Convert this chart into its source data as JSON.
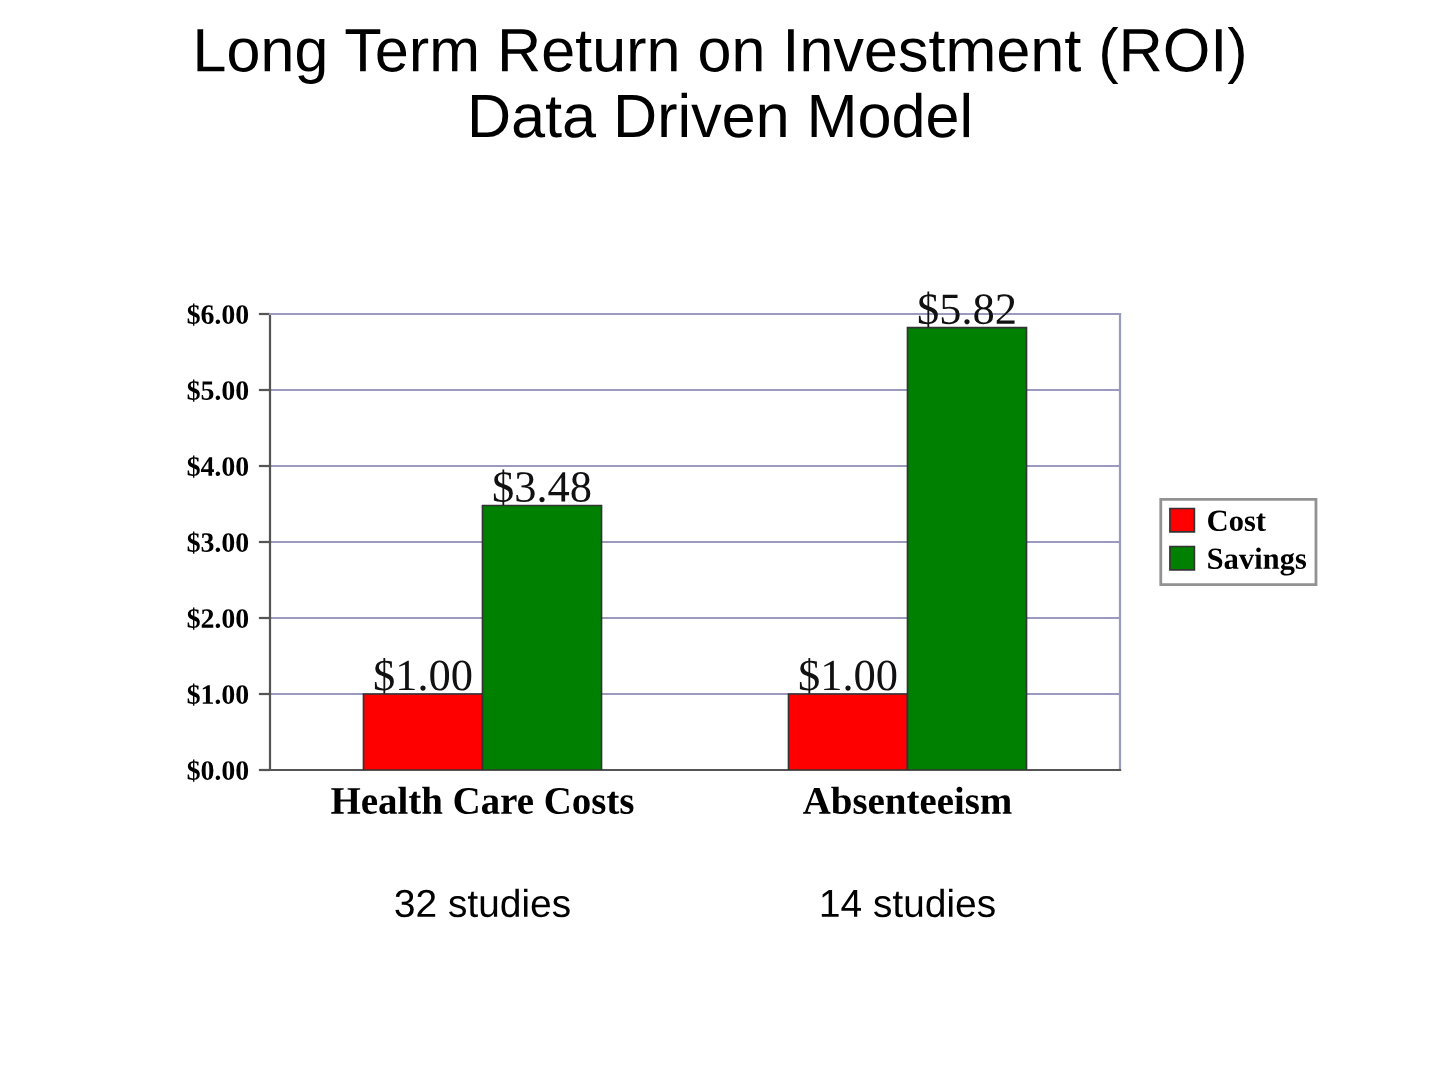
{
  "chart_data": {
    "type": "bar",
    "title": "Long Term Return on Investment (ROI)\nData Driven Model",
    "categories": [
      "Health Care Costs",
      "Absenteeism"
    ],
    "series": [
      {
        "name": "Cost",
        "color": "#ff0000",
        "values": [
          1.0,
          1.0
        ],
        "value_labels": [
          "$1.00",
          "$1.00"
        ]
      },
      {
        "name": "Savings",
        "color": "#008000",
        "values": [
          3.48,
          5.82
        ],
        "value_labels": [
          "$3.48",
          "$5.82"
        ]
      }
    ],
    "ylim": [
      0,
      6
    ],
    "yticks": [
      {
        "value": 0,
        "label": "$0.00"
      },
      {
        "value": 1,
        "label": "$1.00"
      },
      {
        "value": 2,
        "label": "$2.00"
      },
      {
        "value": 3,
        "label": "$3.00"
      },
      {
        "value": 4,
        "label": "$4.00"
      },
      {
        "value": 5,
        "label": "$5.00"
      },
      {
        "value": 6,
        "label": "$6.00"
      }
    ],
    "grid": "y",
    "legend": "right",
    "annotations": [
      "32 studies",
      "14 studies"
    ]
  }
}
